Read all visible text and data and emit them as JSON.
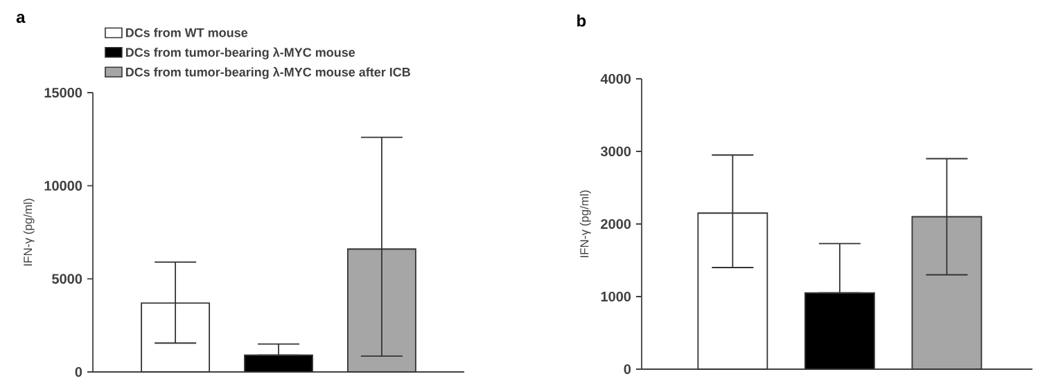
{
  "chart_data": [
    {
      "type": "bar",
      "title": "a",
      "ylabel": "IFN-γ (pg/ml)",
      "categories": [
        null
      ],
      "ylim": [
        0,
        15000
      ],
      "yticks": [
        0,
        5000,
        10000,
        15000
      ],
      "legend": "top left",
      "series": [
        {
          "name": "DCs from WT mouse",
          "color": "#ffffff",
          "values": [
            3700
          ],
          "errors": [
            [
              1550,
              5900
            ]
          ]
        },
        {
          "name": "DCs from tumor-bearing λ-MYC mouse",
          "color": "#000000",
          "values": [
            900
          ],
          "errors": [
            [
              900,
              1500
            ]
          ]
        },
        {
          "name": "DCs from tumor-bearing λ-MYC mouse after ICB",
          "color": "#a6a6a6",
          "values": [
            6600
          ],
          "errors": [
            [
              850,
              12600
            ]
          ]
        }
      ]
    },
    {
      "type": "bar",
      "title": "b",
      "ylabel": "IFN-γ (pg/ml)",
      "categories": [
        null
      ],
      "ylim": [
        0,
        4000
      ],
      "yticks": [
        0,
        1000,
        2000,
        3000,
        4000
      ],
      "series": [
        {
          "color": "#ffffff",
          "values": [
            2150
          ],
          "errors": [
            [
              1400,
              2950
            ]
          ]
        },
        {
          "color": "#000000",
          "values": [
            1050
          ],
          "errors": [
            [
              1050,
              1730
            ]
          ]
        },
        {
          "color": "#a6a6a6",
          "values": [
            2100
          ],
          "errors": [
            800
          ]
        }
      ]
    }
  ]
}
